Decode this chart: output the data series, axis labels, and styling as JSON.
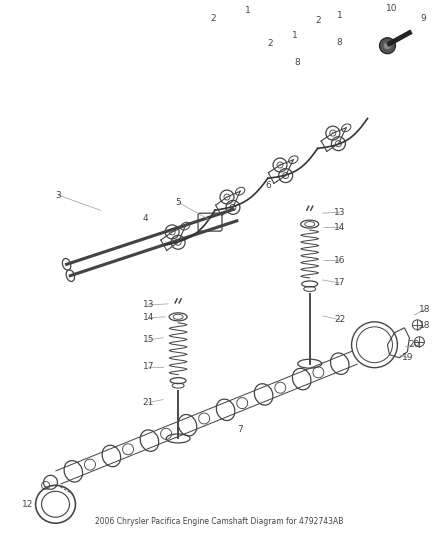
{
  "title": "2006 Chrysler Pacifica Engine Camshaft Diagram for 4792743AB",
  "bg_color": "#ffffff",
  "line_color": "#444444",
  "text_color": "#444444",
  "fig_width": 4.38,
  "fig_height": 5.33,
  "dpi": 100
}
